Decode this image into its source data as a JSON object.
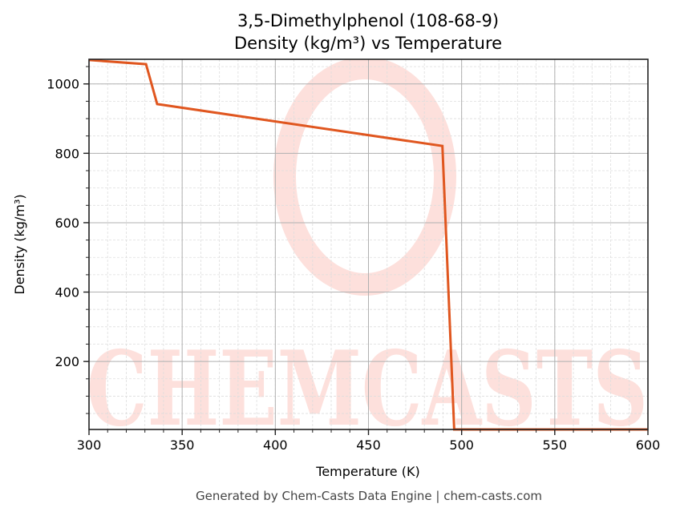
{
  "chart_data": {
    "type": "line",
    "title": "3,5-Dimethylphenol (108-68-9)",
    "subtitle": "Density (kg/m³) vs Temperature",
    "xlabel": "Temperature (K)",
    "ylabel": "Density (kg/m³)",
    "xlim": [
      300,
      600
    ],
    "ylim": [
      4,
      1071
    ],
    "x_ticks": [
      300,
      350,
      400,
      450,
      500,
      550,
      600
    ],
    "y_ticks": [
      200,
      400,
      600,
      800,
      1000
    ],
    "x_minor_step": 10,
    "y_minor_step": 50,
    "grid": true,
    "legend": null,
    "series": [
      {
        "name": "Density",
        "color": "#e0561f",
        "x": [
          300,
          330.6,
          336.6,
          489.7,
          496.0,
          600
        ],
        "y": [
          1069,
          1057,
          942,
          821,
          4,
          4
        ]
      }
    ]
  },
  "footer": "Generated by Chem-Casts Data Engine | chem-casts.com",
  "watermark": {
    "text": "CHEMCASTS",
    "color": "#fde0dc"
  }
}
